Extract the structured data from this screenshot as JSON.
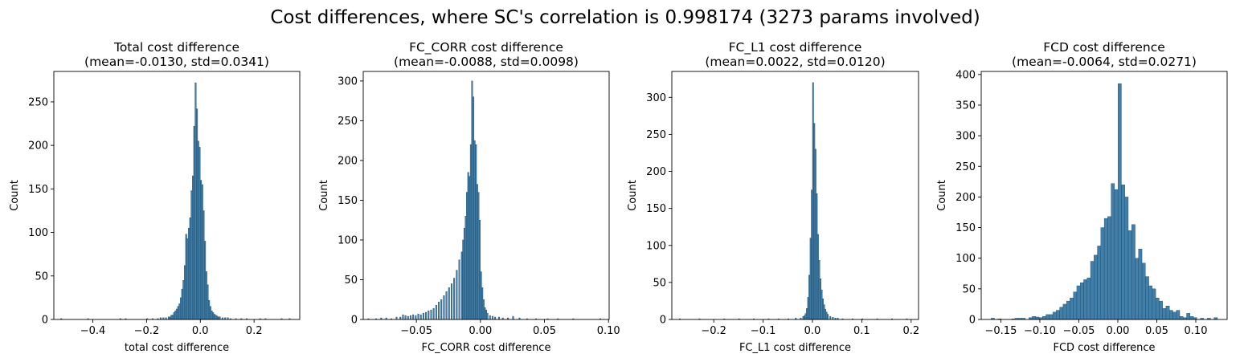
{
  "figure": {
    "suptitle": "Cost differences, where SC's correlation is 0.998174 (3273 params involved)"
  },
  "chart_data": [
    {
      "type": "bar",
      "title": "Total cost difference",
      "subtitle": "(mean=-0.0130, std=0.0341)",
      "xlabel": "total cost difference",
      "ylabel": "Count",
      "xlim": [
        -0.545,
        0.37
      ],
      "ylim": [
        0,
        285
      ],
      "xticks": [
        -0.4,
        -0.2,
        0.0,
        0.2
      ],
      "xtick_labels": [
        "−0.4",
        "−0.2",
        "0.0",
        "0.2"
      ],
      "yticks": [
        0,
        50,
        100,
        150,
        200,
        250
      ],
      "bar_color": "#3274a1",
      "bar_edge": "#1c4a6b",
      "bins": [
        [
          -0.52,
          0.005,
          1
        ],
        [
          -0.42,
          0.005,
          1
        ],
        [
          -0.3,
          0.005,
          1
        ],
        [
          -0.28,
          0.005,
          1
        ],
        [
          -0.2,
          0.005,
          1
        ],
        [
          -0.18,
          0.005,
          1
        ],
        [
          -0.16,
          0.005,
          1
        ],
        [
          -0.15,
          0.005,
          2
        ],
        [
          -0.14,
          0.005,
          2
        ],
        [
          -0.13,
          0.005,
          2
        ],
        [
          -0.12,
          0.005,
          3
        ],
        [
          -0.115,
          0.005,
          3
        ],
        [
          -0.11,
          0.005,
          5
        ],
        [
          -0.105,
          0.005,
          5
        ],
        [
          -0.1,
          0.005,
          8
        ],
        [
          -0.095,
          0.005,
          10
        ],
        [
          -0.09,
          0.005,
          12
        ],
        [
          -0.085,
          0.005,
          15
        ],
        [
          -0.08,
          0.005,
          18
        ],
        [
          -0.075,
          0.005,
          25
        ],
        [
          -0.07,
          0.005,
          35
        ],
        [
          -0.065,
          0.005,
          45
        ],
        [
          -0.06,
          0.005,
          62
        ],
        [
          -0.055,
          0.005,
          98
        ],
        [
          -0.05,
          0.005,
          93
        ],
        [
          -0.045,
          0.005,
          105
        ],
        [
          -0.04,
          0.005,
          117
        ],
        [
          -0.035,
          0.005,
          148
        ],
        [
          -0.03,
          0.005,
          165
        ],
        [
          -0.025,
          0.005,
          222
        ],
        [
          -0.02,
          0.005,
          272
        ],
        [
          -0.015,
          0.005,
          242
        ],
        [
          -0.01,
          0.005,
          205
        ],
        [
          -0.005,
          0.005,
          198
        ],
        [
          0.0,
          0.005,
          160
        ],
        [
          0.005,
          0.005,
          155
        ],
        [
          0.01,
          0.005,
          125
        ],
        [
          0.015,
          0.005,
          90
        ],
        [
          0.02,
          0.005,
          55
        ],
        [
          0.025,
          0.005,
          40
        ],
        [
          0.03,
          0.005,
          22
        ],
        [
          0.035,
          0.005,
          15
        ],
        [
          0.04,
          0.005,
          10
        ],
        [
          0.045,
          0.005,
          8
        ],
        [
          0.05,
          0.005,
          6
        ],
        [
          0.055,
          0.005,
          5
        ],
        [
          0.06,
          0.005,
          4
        ],
        [
          0.065,
          0.005,
          3
        ],
        [
          0.07,
          0.005,
          3
        ],
        [
          0.08,
          0.005,
          2
        ],
        [
          0.09,
          0.005,
          2
        ],
        [
          0.1,
          0.005,
          2
        ],
        [
          0.11,
          0.005,
          1
        ],
        [
          0.13,
          0.005,
          1
        ],
        [
          0.15,
          0.005,
          1
        ],
        [
          0.17,
          0.005,
          1
        ],
        [
          0.22,
          0.005,
          1
        ],
        [
          0.24,
          0.005,
          1
        ],
        [
          0.3,
          0.005,
          1
        ],
        [
          0.33,
          0.005,
          1
        ]
      ]
    },
    {
      "type": "bar",
      "title": "FC_CORR cost difference",
      "subtitle": "(mean=-0.0088, std=0.0098)",
      "xlabel": "FC_CORR cost difference",
      "ylabel": "Count",
      "xlim": [
        -0.0915,
        0.1005
      ],
      "ylim": [
        0,
        312
      ],
      "xticks": [
        -0.05,
        0.0,
        0.05,
        0.1
      ],
      "xtick_labels": [
        "−0.05",
        "0.00",
        "0.05",
        "0.10"
      ],
      "yticks": [
        0,
        50,
        100,
        150,
        200,
        250,
        300
      ],
      "bar_color": "#3274a1",
      "bar_edge": "#1c4a6b",
      "bins": [
        [
          -0.088,
          0.001,
          1
        ],
        [
          -0.082,
          0.001,
          1
        ],
        [
          -0.078,
          0.001,
          2
        ],
        [
          -0.074,
          0.001,
          2
        ],
        [
          -0.07,
          0.001,
          1
        ],
        [
          -0.066,
          0.001,
          3
        ],
        [
          -0.063,
          0.001,
          3
        ],
        [
          -0.061,
          0.001,
          6
        ],
        [
          -0.059,
          0.001,
          5
        ],
        [
          -0.057,
          0.001,
          4
        ],
        [
          -0.055,
          0.001,
          5
        ],
        [
          -0.053,
          0.001,
          6
        ],
        [
          -0.051,
          0.001,
          5
        ],
        [
          -0.049,
          0.001,
          7
        ],
        [
          -0.047,
          0.001,
          6
        ],
        [
          -0.045,
          0.001,
          8
        ],
        [
          -0.043,
          0.001,
          9
        ],
        [
          -0.041,
          0.001,
          11
        ],
        [
          -0.039,
          0.001,
          12
        ],
        [
          -0.037,
          0.001,
          14
        ],
        [
          -0.035,
          0.001,
          18
        ],
        [
          -0.033,
          0.001,
          22
        ],
        [
          -0.031,
          0.001,
          25
        ],
        [
          -0.029,
          0.001,
          30
        ],
        [
          -0.027,
          0.001,
          35
        ],
        [
          -0.025,
          0.001,
          40
        ],
        [
          -0.023,
          0.001,
          45
        ],
        [
          -0.021,
          0.001,
          52
        ],
        [
          -0.019,
          0.001,
          62
        ],
        [
          -0.017,
          0.001,
          75
        ],
        [
          -0.015,
          0.001,
          85
        ],
        [
          -0.014,
          0.001,
          100
        ],
        [
          -0.013,
          0.001,
          115
        ],
        [
          -0.012,
          0.001,
          130
        ],
        [
          -0.011,
          0.001,
          160
        ],
        [
          -0.01,
          0.001,
          185
        ],
        [
          -0.009,
          0.001,
          180
        ],
        [
          -0.008,
          0.001,
          220
        ],
        [
          -0.007,
          0.001,
          300
        ],
        [
          -0.006,
          0.001,
          280
        ],
        [
          -0.005,
          0.001,
          225
        ],
        [
          -0.004,
          0.001,
          220
        ],
        [
          -0.003,
          0.001,
          170
        ],
        [
          -0.002,
          0.001,
          160
        ],
        [
          -0.001,
          0.001,
          125
        ],
        [
          0.0,
          0.001,
          60
        ],
        [
          0.001,
          0.001,
          40
        ],
        [
          0.002,
          0.001,
          25
        ],
        [
          0.003,
          0.001,
          15
        ],
        [
          0.004,
          0.001,
          12
        ],
        [
          0.005,
          0.001,
          8
        ],
        [
          0.007,
          0.001,
          5
        ],
        [
          0.009,
          0.001,
          4
        ],
        [
          0.011,
          0.001,
          3
        ],
        [
          0.014,
          0.001,
          3
        ],
        [
          0.017,
          0.001,
          2
        ],
        [
          0.021,
          0.001,
          2
        ],
        [
          0.025,
          0.001,
          4
        ],
        [
          0.03,
          0.001,
          2
        ],
        [
          0.036,
          0.001,
          1
        ],
        [
          0.043,
          0.001,
          1
        ],
        [
          0.052,
          0.001,
          1
        ],
        [
          0.06,
          0.001,
          1
        ],
        [
          0.072,
          0.001,
          1
        ],
        [
          0.093,
          0.001,
          1
        ]
      ]
    },
    {
      "type": "bar",
      "title": "FC_L1 cost difference",
      "subtitle": "(mean=0.0022, std=0.0120)",
      "xlabel": "FC_L1 cost difference",
      "ylabel": "Count",
      "xlim": [
        -0.285,
        0.215
      ],
      "ylim": [
        0,
        335
      ],
      "xticks": [
        -0.2,
        -0.1,
        0.0,
        0.1,
        0.2
      ],
      "xtick_labels": [
        "−0.2",
        "−0.1",
        "0.0",
        "0.1",
        "0.2"
      ],
      "yticks": [
        0,
        50,
        100,
        150,
        200,
        250,
        300
      ],
      "bar_color": "#3274a1",
      "bar_edge": "#1c4a6b",
      "bins": [
        [
          -0.27,
          0.0025,
          1
        ],
        [
          -0.23,
          0.0025,
          1
        ],
        [
          -0.18,
          0.0025,
          1
        ],
        [
          -0.15,
          0.0025,
          1
        ],
        [
          -0.12,
          0.0025,
          1
        ],
        [
          -0.09,
          0.0025,
          1
        ],
        [
          -0.07,
          0.0025,
          1
        ],
        [
          -0.05,
          0.0025,
          1
        ],
        [
          -0.035,
          0.0025,
          2
        ],
        [
          -0.025,
          0.0025,
          2
        ],
        [
          -0.02,
          0.0025,
          4
        ],
        [
          -0.0175,
          0.0025,
          5
        ],
        [
          -0.015,
          0.0025,
          8
        ],
        [
          -0.0125,
          0.0025,
          15
        ],
        [
          -0.01,
          0.0025,
          30
        ],
        [
          -0.0075,
          0.0025,
          60
        ],
        [
          -0.005,
          0.0025,
          110
        ],
        [
          -0.0025,
          0.0025,
          175
        ],
        [
          0.0,
          0.0025,
          320
        ],
        [
          0.0025,
          0.0025,
          265
        ],
        [
          0.005,
          0.0025,
          230
        ],
        [
          0.0075,
          0.0025,
          170
        ],
        [
          0.01,
          0.0025,
          115
        ],
        [
          0.0125,
          0.0025,
          80
        ],
        [
          0.015,
          0.0025,
          55
        ],
        [
          0.0175,
          0.0025,
          40
        ],
        [
          0.02,
          0.0025,
          28
        ],
        [
          0.0225,
          0.0025,
          20
        ],
        [
          0.025,
          0.0025,
          14
        ],
        [
          0.0275,
          0.0025,
          10
        ],
        [
          0.03,
          0.0025,
          7
        ],
        [
          0.035,
          0.0025,
          4
        ],
        [
          0.04,
          0.0025,
          3
        ],
        [
          0.045,
          0.0025,
          2
        ],
        [
          0.05,
          0.0025,
          2
        ],
        [
          0.06,
          0.0025,
          1
        ],
        [
          0.08,
          0.0025,
          1
        ],
        [
          0.1,
          0.0025,
          1
        ],
        [
          0.13,
          0.0025,
          1
        ],
        [
          0.16,
          0.0025,
          1
        ],
        [
          0.19,
          0.0025,
          1
        ]
      ]
    },
    {
      "type": "bar",
      "title": "FCD cost difference",
      "subtitle": "(mean=-0.0064, std=0.0271)",
      "xlabel": "FCD cost difference",
      "ylabel": "Count",
      "xlim": [
        -0.1752,
        0.1402
      ],
      "ylim": [
        0,
        405
      ],
      "xticks": [
        -0.15,
        -0.1,
        -0.05,
        0.0,
        0.05,
        0.1
      ],
      "xtick_labels": [
        "−0.15",
        "−0.10",
        "−0.05",
        "0.00",
        "0.05",
        "0.10"
      ],
      "yticks": [
        0,
        50,
        100,
        150,
        200,
        250,
        300,
        350,
        400
      ],
      "bar_color": "#3274a1",
      "bar_edge": "#1c4a6b",
      "bins": [
        [
          -0.1626,
          0.0044,
          2
        ],
        [
          -0.1538,
          0.0044,
          1
        ],
        [
          -0.1362,
          0.0044,
          1
        ],
        [
          -0.1318,
          0.0044,
          2
        ],
        [
          -0.1274,
          0.0044,
          2
        ],
        [
          -0.123,
          0.0044,
          2
        ],
        [
          -0.1142,
          0.0044,
          3
        ],
        [
          -0.1098,
          0.0044,
          5
        ],
        [
          -0.1054,
          0.0044,
          4
        ],
        [
          -0.101,
          0.0044,
          3
        ],
        [
          -0.0966,
          0.0044,
          5
        ],
        [
          -0.0922,
          0.0044,
          8
        ],
        [
          -0.0878,
          0.0044,
          8
        ],
        [
          -0.0834,
          0.0044,
          12
        ],
        [
          -0.079,
          0.0044,
          15
        ],
        [
          -0.0746,
          0.0044,
          20
        ],
        [
          -0.0702,
          0.0044,
          25
        ],
        [
          -0.0658,
          0.0044,
          30
        ],
        [
          -0.0614,
          0.0044,
          35
        ],
        [
          -0.057,
          0.0044,
          45
        ],
        [
          -0.0526,
          0.0044,
          55
        ],
        [
          -0.0482,
          0.0044,
          60
        ],
        [
          -0.0438,
          0.0044,
          65
        ],
        [
          -0.0394,
          0.0044,
          68
        ],
        [
          -0.035,
          0.0044,
          95
        ],
        [
          -0.0306,
          0.0044,
          105
        ],
        [
          -0.0262,
          0.0044,
          120
        ],
        [
          -0.0218,
          0.0044,
          150
        ],
        [
          -0.0174,
          0.0044,
          165
        ],
        [
          -0.013,
          0.0044,
          168
        ],
        [
          -0.0086,
          0.0044,
          222
        ],
        [
          -0.0042,
          0.0044,
          212
        ],
        [
          0.0002,
          0.0044,
          385
        ],
        [
          0.0046,
          0.0044,
          220
        ],
        [
          0.009,
          0.0044,
          200
        ],
        [
          0.0134,
          0.0044,
          145
        ],
        [
          0.0178,
          0.0044,
          155
        ],
        [
          0.0222,
          0.0044,
          100
        ],
        [
          0.0266,
          0.0044,
          115
        ],
        [
          0.031,
          0.0044,
          92
        ],
        [
          0.0354,
          0.0044,
          70
        ],
        [
          0.0398,
          0.0044,
          55
        ],
        [
          0.0442,
          0.0044,
          50
        ],
        [
          0.0486,
          0.0044,
          35
        ],
        [
          0.053,
          0.0044,
          30
        ],
        [
          0.0574,
          0.0044,
          18
        ],
        [
          0.0618,
          0.0044,
          22
        ],
        [
          0.0662,
          0.0044,
          15
        ],
        [
          0.0706,
          0.0044,
          12
        ],
        [
          0.075,
          0.0044,
          15
        ],
        [
          0.0794,
          0.0044,
          5
        ],
        [
          0.0838,
          0.0044,
          3
        ],
        [
          0.0882,
          0.0044,
          10
        ],
        [
          0.0926,
          0.0044,
          5
        ],
        [
          0.097,
          0.0044,
          3
        ],
        [
          0.1058,
          0.0044,
          2
        ],
        [
          0.1146,
          0.0044,
          2
        ],
        [
          0.1234,
          0.0044,
          3
        ]
      ]
    }
  ]
}
